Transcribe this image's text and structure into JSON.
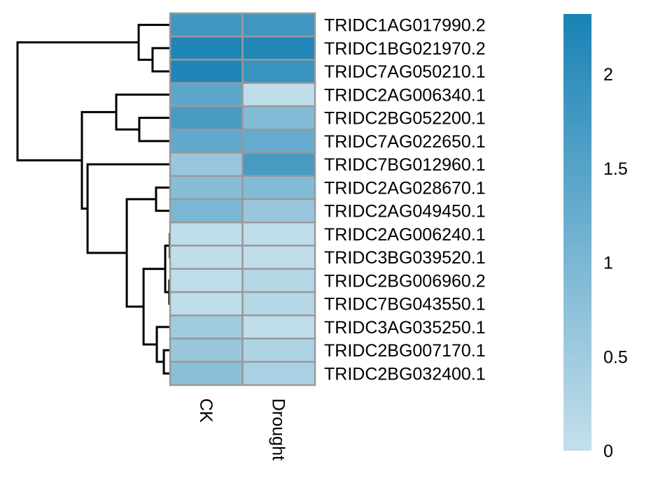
{
  "chart_data": {
    "type": "heatmap",
    "columns": [
      "CK",
      "Drought"
    ],
    "rows": [
      "TRIDC1AG017990.2",
      "TRIDC1BG021970.2",
      "TRIDC7AG050210.1",
      "TRIDC2AG006340.1",
      "TRIDC2BG052200.1",
      "TRIDC7AG022650.1",
      "TRIDC7BG012960.1",
      "TRIDC2AG028670.1",
      "TRIDC2AG049450.1",
      "TRIDC2AG006240.1",
      "TRIDC3BG039520.1",
      "TRIDC2BG006960.2",
      "TRIDC7BG043550.1",
      "TRIDC3AG035250.1",
      "TRIDC2BG007170.1",
      "TRIDC2BG032400.1"
    ],
    "values": [
      [
        1.8,
        1.8
      ],
      [
        2.25,
        2.2
      ],
      [
        2.25,
        1.9
      ],
      [
        1.4,
        0.05
      ],
      [
        1.7,
        0.9
      ],
      [
        1.35,
        1.3
      ],
      [
        0.6,
        1.7
      ],
      [
        0.85,
        0.9
      ],
      [
        1.0,
        0.6
      ],
      [
        0.05,
        0.05
      ],
      [
        0.05,
        0.05
      ],
      [
        0.05,
        0.2
      ],
      [
        0.05,
        0.2
      ],
      [
        0.5,
        0.05
      ],
      [
        0.6,
        0.3
      ],
      [
        0.8,
        0.35
      ]
    ],
    "color_scale": {
      "min": 0,
      "max": 2.32,
      "low_color": "#c4dfeb",
      "high_color": "#1a82b5"
    },
    "legend_ticks": [
      "0",
      "0.5",
      "1",
      "1.5",
      "2"
    ],
    "legend_tick_values": [
      0,
      0.5,
      1,
      1.5,
      2
    ],
    "legend_placement": "right",
    "row_dendrogram": {
      "h": 10,
      "c": [
        {
          "h": 2.06,
          "c": [
            0,
            {
              "h": 1.15,
              "c": [
                1,
                2
              ]
            }
          ]
        },
        {
          "h": 5.78,
          "c": [
            {
              "h": 3.53,
              "c": [
                3,
                {
                  "h": 2.02,
                  "c": [
                    4,
                    5
                  ]
                }
              ]
            },
            {
              "h": 5.41,
              "c": [
                6,
                {
                  "h": 2.84,
                  "c": [
                    {
                      "h": 0.92,
                      "c": [
                        7,
                        8
                      ]
                    },
                    {
                      "h": 1.74,
                      "c": [
                        {
                          "h": 0.32,
                          "c": [
                            {
                              "h": 0.02,
                              "c": [
                                9,
                                10
                              ]
                            },
                            {
                              "h": 0.05,
                              "c": [
                                11,
                                12
                              ]
                            }
                          ]
                        },
                        {
                          "h": 0.87,
                          "c": [
                            13,
                            {
                              "h": 0.41,
                              "c": [
                                14,
                                15
                              ]
                            }
                          ]
                        }
                      ]
                    }
                  ]
                }
              ]
            }
          ]
        }
      ]
    }
  }
}
